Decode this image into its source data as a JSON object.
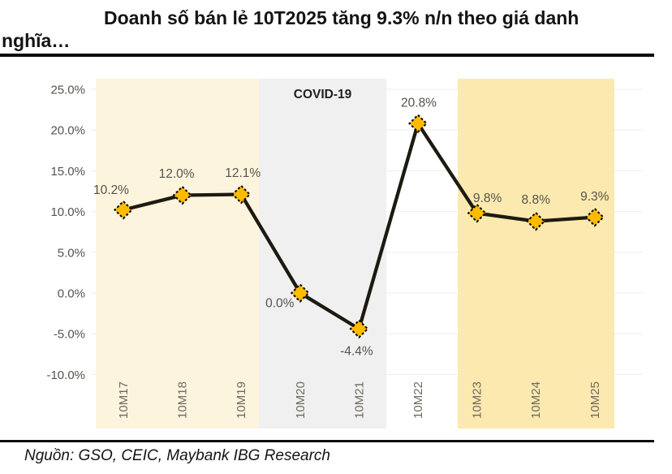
{
  "header": {
    "title_line1": "Doanh số bán lẻ 10T2025 tăng 9.3% n/n theo giá danh",
    "title_line2": "nghĩa…"
  },
  "footer": {
    "source": "Nguồn: GSO, CEIC, Maybank IBG Research"
  },
  "chart_data": {
    "type": "line",
    "title": "Doanh số bán lẻ 10T2025 tăng 9.3% n/n theo giá danh nghĩa…",
    "categories": [
      "10M17",
      "10M18",
      "10M19",
      "10M20",
      "10M21",
      "10M22",
      "10M23",
      "10M24",
      "10M25"
    ],
    "values": [
      10.2,
      12.0,
      12.1,
      0.0,
      -4.4,
      20.8,
      9.8,
      8.8,
      9.3
    ],
    "data_labels": [
      "10.2%",
      "12.0%",
      "12.1%",
      "0.0%",
      "-4.4%",
      "20.8%",
      "9.8%",
      "8.8%",
      "9.3%"
    ],
    "ylim": [
      -10,
      25
    ],
    "ytick_step": 5,
    "ytick_labels": [
      "25.0%",
      "20.0%",
      "15.0%",
      "10.0%",
      "5.0%",
      "0.0%",
      "-5.0%",
      "-10.0%"
    ],
    "ytick_values": [
      25,
      20,
      15,
      10,
      5,
      0,
      -5,
      -10
    ],
    "grid": "faint-horizontal",
    "legend": "none",
    "annotation": "COVID-19",
    "regions": [
      {
        "name": "pre-covid",
        "from": "10M17",
        "to": "10M19",
        "color": "#FDF4DE"
      },
      {
        "name": "covid",
        "from": "10M20",
        "to": "10M21",
        "color": "#F0F0F0"
      },
      {
        "name": "post-covid",
        "from": "10M23",
        "to": "10M25",
        "color": "#FBE9AF"
      }
    ],
    "colors": {
      "line": "#1d1a12",
      "marker_fill": "#FFBB00",
      "marker_border": "#0d0c08",
      "data_label": "#57534c",
      "y_axis_label": "#57534c",
      "x_axis_label": "#6e6a60",
      "annotation_label": "#1f1f1f",
      "gridline": "#f2f1ef"
    }
  }
}
